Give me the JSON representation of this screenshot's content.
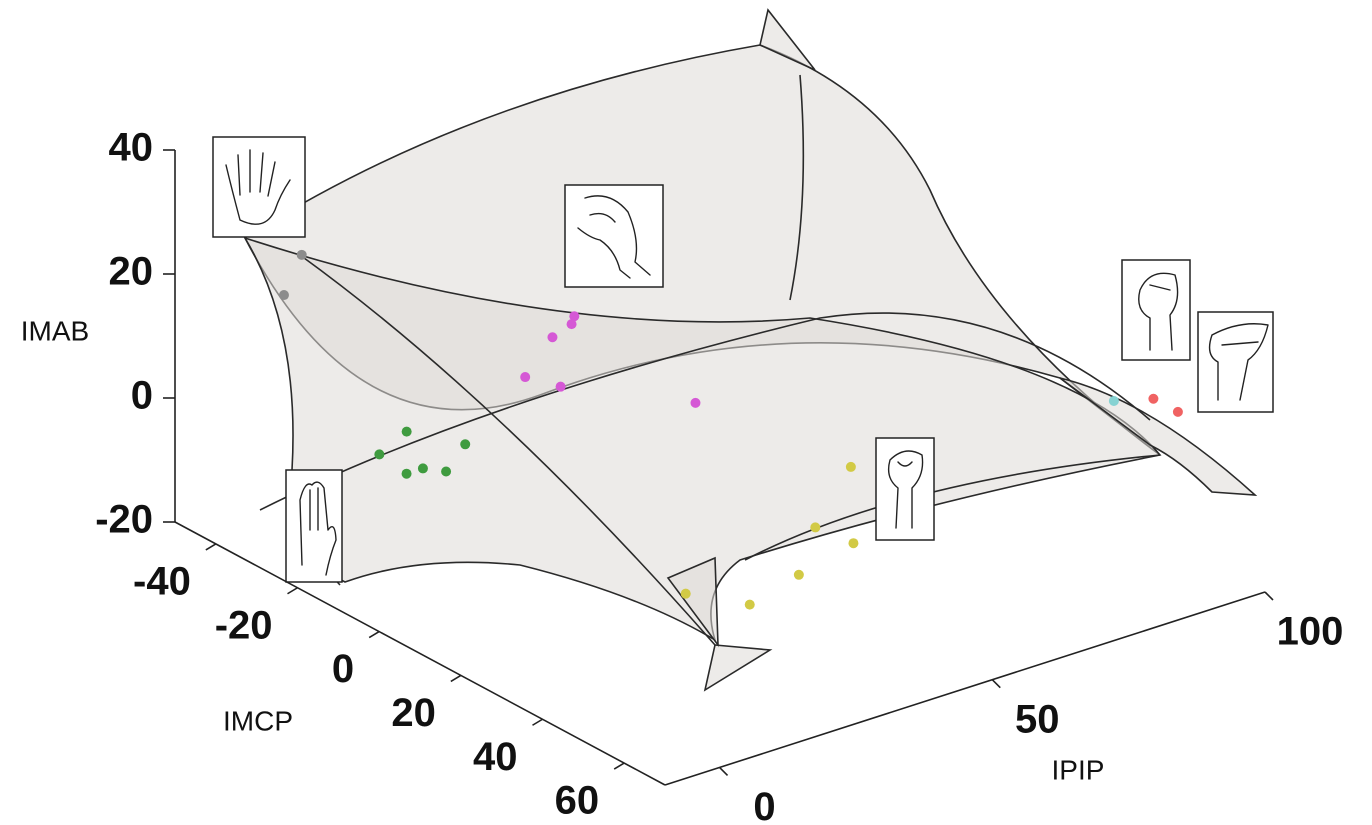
{
  "chart_data": {
    "type": "scatter3d",
    "xlabel": "IPIP",
    "ylabel": "IMCP",
    "zlabel": "IMAB",
    "xlim": [
      -10,
      100
    ],
    "ylim": [
      -50,
      70
    ],
    "zlim": [
      -20,
      40
    ],
    "xticks": [
      0,
      50,
      100
    ],
    "yticks": [
      -40,
      -20,
      0,
      20,
      40,
      60
    ],
    "zticks": [
      -20,
      0,
      20,
      40
    ],
    "series": [
      {
        "color": "#8c8c8c",
        "x": [
          2,
          -2
        ],
        "y": [
          -35,
          -34
        ],
        "z": [
          25,
          20
        ]
      },
      {
        "color": "#3f9b3f",
        "x": [
          16,
          8,
          7,
          10,
          12,
          20
        ],
        "y": [
          -28,
          -24,
          -16,
          -16,
          -13,
          -19
        ],
        "z": [
          -5,
          -5,
          -5,
          -5,
          -5,
          -5
        ]
      },
      {
        "color": "#d558d5",
        "x": [
          40,
          38,
          33,
          28,
          30,
          42
        ],
        "y": [
          -19,
          -17,
          -15,
          -15,
          -9,
          8
        ],
        "z": [
          10,
          10,
          10,
          5,
          5,
          5
        ]
      },
      {
        "color": "#d2ca45",
        "x": [
          66,
          49,
          50,
          37,
          25,
          20
        ],
        "y": [
          14,
          28,
          36,
          40,
          44,
          35
        ],
        "z": [
          -10,
          -10,
          -10,
          -10,
          -10,
          -10
        ]
      },
      {
        "color": "#86d2d2",
        "x": [
          97
        ],
        "y": [
          37
        ],
        "z": [
          0
        ]
      },
      {
        "color": "#f06262",
        "x": [
          102,
          102
        ],
        "y": [
          40,
          46
        ],
        "z": [
          0,
          0
        ]
      }
    ]
  }
}
